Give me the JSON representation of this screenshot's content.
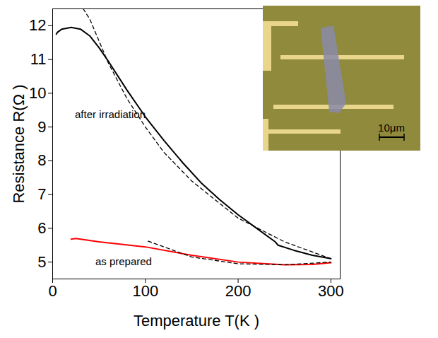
{
  "chart_data": {
    "type": "line",
    "xlabel": "Temperature T(K )",
    "ylabel": "Resistance R(Ω )",
    "xlim": [
      0,
      310
    ],
    "ylim": [
      4.5,
      12.5
    ],
    "xticks": [
      0,
      100,
      200,
      300
    ],
    "yticks": [
      5,
      6,
      7,
      8,
      9,
      10,
      11,
      12
    ],
    "series": [
      {
        "color": "#000000",
        "line_style": "solid",
        "x": [
          4,
          5,
          10,
          20,
          30,
          40,
          50,
          60,
          80,
          100,
          120,
          140,
          160,
          180,
          200,
          220,
          240,
          243,
          260,
          280,
          300
        ],
        "values": [
          11.75,
          11.8,
          11.9,
          11.95,
          11.9,
          11.7,
          11.35,
          10.95,
          10.1,
          9.3,
          8.6,
          7.95,
          7.35,
          6.85,
          6.4,
          6.0,
          5.6,
          5.5,
          5.35,
          5.2,
          5.1
        ]
      },
      {
        "color": "#000000",
        "line_style": "dashed",
        "x": [
          33,
          40,
          60,
          80,
          100,
          120,
          150,
          200,
          250,
          300
        ],
        "values": [
          12.5,
          12.2,
          10.9,
          9.85,
          9.0,
          8.25,
          7.4,
          6.3,
          5.6,
          5.1
        ]
      },
      {
        "color": "#ff0000",
        "line_style": "solid",
        "x": [
          20,
          25,
          50,
          100,
          150,
          200,
          250,
          280,
          300
        ],
        "values": [
          5.68,
          5.7,
          5.6,
          5.45,
          5.2,
          5.0,
          4.92,
          4.93,
          4.98
        ]
      },
      {
        "color": "#000000",
        "line_style": "dashed",
        "x": [
          103,
          150,
          200,
          250,
          300
        ],
        "values": [
          5.62,
          5.15,
          4.95,
          4.92,
          5.0
        ]
      }
    ],
    "annotations": [
      {
        "text": "after irradiation",
        "x": 24,
        "y": 9.36
      },
      {
        "text": "as prepared",
        "x": 46,
        "y": 5.0
      }
    ],
    "inset": {
      "scale_bar_label": "10μm"
    }
  }
}
